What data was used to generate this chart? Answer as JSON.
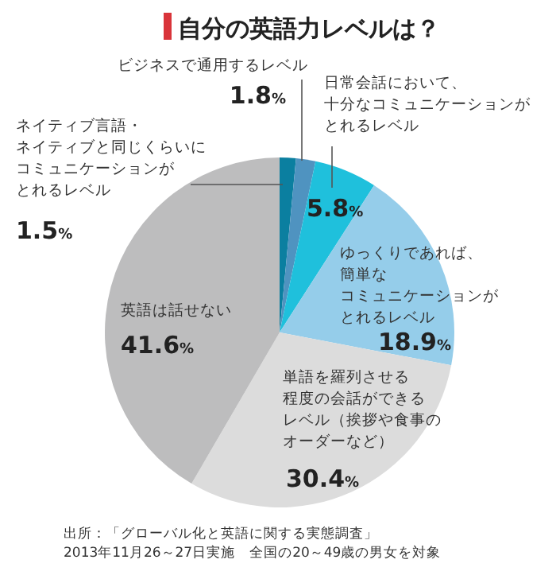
{
  "chart_data": {
    "type": "pie",
    "title": "自分の英語力レベルは？",
    "categories": [
      "ネイティブ言語・ネイティブと同じくらいにコミュニケーションがとれるレベル",
      "ビジネスで通用するレベル",
      "日常会話において、十分なコミュニケーションがとれるレベル",
      "ゆっくりであれば、簡単なコミュニケーションがとれるレベル",
      "単語を羅列させる程度の会話ができるレベル（挨拶や食事のオーダーなど）",
      "英語は話せない"
    ],
    "values": [
      1.5,
      1.8,
      5.8,
      18.9,
      30.4,
      41.6
    ],
    "value_labels": [
      "1.5%",
      "1.8%",
      "5.8%",
      "18.9%",
      "30.4%",
      "41.6%"
    ],
    "colors": [
      "#0b7fa0",
      "#4f93c0",
      "#1fc0dc",
      "#95cdea",
      "#dcdcdc",
      "#bdbdbe"
    ],
    "annotations": [
      "出所：「グローバル化と英語に関する実態調査」",
      "2013年11月26～27日実施　全国の20～49歳の男女を対象"
    ]
  }
}
